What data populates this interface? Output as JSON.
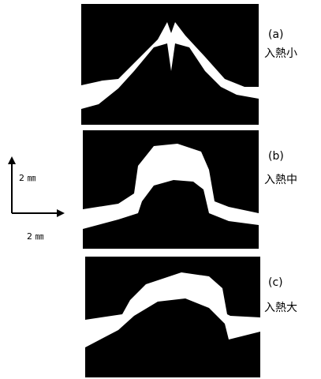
{
  "panels": [
    {
      "label": "(a)",
      "caption": "入熱小"
    },
    {
      "label": "(b)",
      "caption": "入熱中"
    },
    {
      "label": "(c)",
      "caption": "入熱大"
    }
  ],
  "scale": {
    "vertical": "2 ㎜",
    "horizontal": "2 ㎜"
  }
}
